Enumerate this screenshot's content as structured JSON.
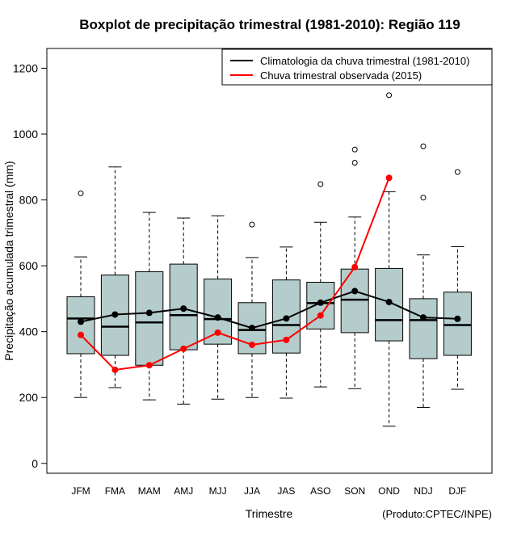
{
  "chart_data": {
    "type": "boxplot",
    "title": "Boxplot de precipitação trimestral (1981-2010): Região 119",
    "xlabel": "Trimestre",
    "ylabel": "Precipitação acumulada trimestral (mm)",
    "ylim": [
      -30,
      1260
    ],
    "yticks": [
      0,
      200,
      400,
      600,
      800,
      1000,
      1200
    ],
    "credit": "(Produto:CPTEC/INPE)",
    "legend_position": "top-right",
    "categories": [
      "JFM",
      "FMA",
      "MAM",
      "AMJ",
      "MJJ",
      "JJA",
      "JAS",
      "ASO",
      "SON",
      "OND",
      "NDJ",
      "DJF"
    ],
    "boxes": [
      {
        "whisker_low": 200,
        "q1": 333,
        "median": 440,
        "q3": 506,
        "whisker_high": 627,
        "outliers": [
          820
        ]
      },
      {
        "whisker_low": 230,
        "q1": 328,
        "median": 415,
        "q3": 572,
        "whisker_high": 900,
        "outliers": []
      },
      {
        "whisker_low": 193,
        "q1": 298,
        "median": 428,
        "q3": 582,
        "whisker_high": 762,
        "outliers": []
      },
      {
        "whisker_low": 180,
        "q1": 345,
        "median": 450,
        "q3": 605,
        "whisker_high": 745,
        "outliers": []
      },
      {
        "whisker_low": 195,
        "q1": 362,
        "median": 438,
        "q3": 560,
        "whisker_high": 752,
        "outliers": []
      },
      {
        "whisker_low": 200,
        "q1": 333,
        "median": 405,
        "q3": 488,
        "whisker_high": 625,
        "outliers": [
          725
        ]
      },
      {
        "whisker_low": 198,
        "q1": 335,
        "median": 420,
        "q3": 557,
        "whisker_high": 657,
        "outliers": []
      },
      {
        "whisker_low": 232,
        "q1": 408,
        "median": 487,
        "q3": 550,
        "whisker_high": 732,
        "outliers": [
          848
        ]
      },
      {
        "whisker_low": 227,
        "q1": 397,
        "median": 497,
        "q3": 590,
        "whisker_high": 748,
        "outliers": [
          913,
          953
        ]
      },
      {
        "whisker_low": 113,
        "q1": 372,
        "median": 435,
        "q3": 592,
        "whisker_high": 825,
        "outliers": [
          1118
        ]
      },
      {
        "whisker_low": 170,
        "q1": 318,
        "median": 435,
        "q3": 500,
        "whisker_high": 633,
        "outliers": [
          807,
          963
        ]
      },
      {
        "whisker_low": 225,
        "q1": 328,
        "median": 420,
        "q3": 520,
        "whisker_high": 658,
        "outliers": [
          885
        ]
      }
    ],
    "series": [
      {
        "name": "Climatologia da chuva trimestral (1981-2010)",
        "color": "#000000",
        "values": [
          430,
          452,
          457,
          470,
          443,
          411,
          440,
          488,
          523,
          490,
          443,
          439
        ]
      },
      {
        "name": "Chuva trimestral observada (2015)",
        "color": "#ff0000",
        "values": [
          390,
          284,
          298,
          348,
          397,
          360,
          375,
          449,
          596,
          867,
          null,
          null
        ]
      }
    ],
    "box_fill": "#b4cccc"
  }
}
